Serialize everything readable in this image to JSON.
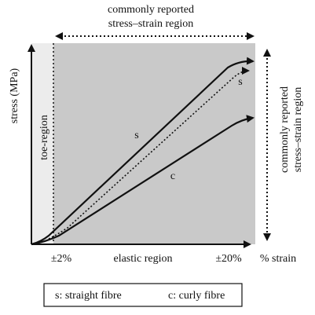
{
  "diagram": {
    "top_label_line1": "commonly reported",
    "top_label_line2": "stress–strain region",
    "right_label_line1": "commonly reported",
    "right_label_line2": "stress–strain region",
    "y_axis_label": "stress (MPa)",
    "x_axis_label": "% strain",
    "toe_region_label": "toe-region",
    "elastic_region_label": "elastic region",
    "tick_2pct": "±2%",
    "tick_20pct": "±20%",
    "curve_s_label": "s",
    "curve_s_dotted_label": "s",
    "curve_c_label": "c",
    "legend_straight": "s: straight fibre",
    "legend_curly": "c: curly fibre"
  },
  "colors": {
    "shaded_region": "#c9c9c9",
    "toe_region": "#ececec",
    "lines": "#111111"
  }
}
